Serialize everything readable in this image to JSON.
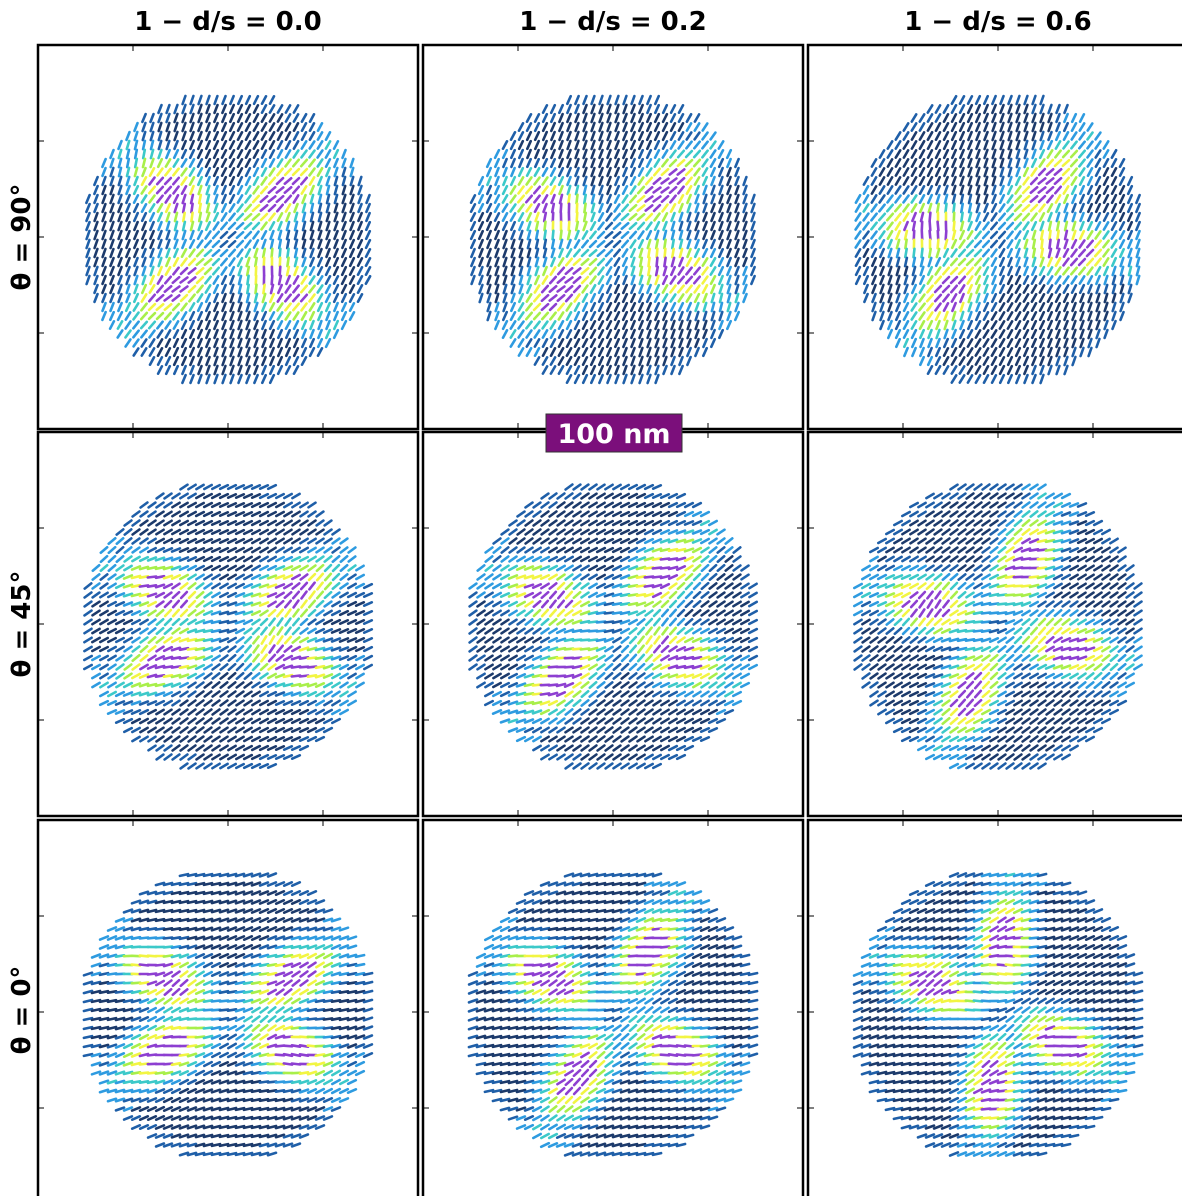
{
  "columns": [
    "1 − d/s = 0.0",
    "1 − d/s = 0.2",
    "1 − d/s = 0.6"
  ],
  "rows": [
    "θ = 90°",
    "θ = 45°",
    "θ = 0°"
  ],
  "scale_bar": "100 nm"
}
